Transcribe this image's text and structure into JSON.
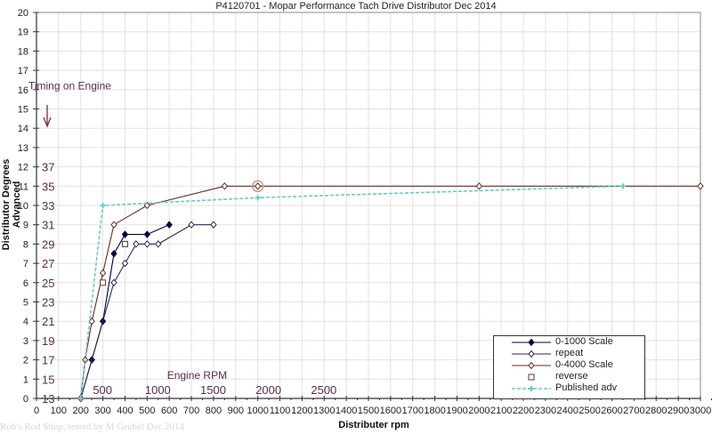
{
  "chart_data": {
    "type": "line",
    "title": "P4120701 - Mopar Performance Tach Drive Distributor Dec 2014",
    "xlabel": "Distributer rpm",
    "ylabel": "Distributor Degrees Advanced",
    "xlim": [
      0,
      3000
    ],
    "ylim": [
      0,
      20
    ],
    "x_ticks": [
      0,
      100,
      200,
      300,
      400,
      500,
      600,
      700,
      800,
      900,
      1000,
      1100,
      1200,
      1300,
      1400,
      1500,
      1600,
      1700,
      1800,
      1900,
      2000,
      2100,
      2200,
      2300,
      2400,
      2500,
      2600,
      2700,
      2800,
      2900,
      3000
    ],
    "y_ticks": [
      0,
      1,
      2,
      3,
      4,
      5,
      6,
      7,
      8,
      9,
      10,
      11,
      12,
      13,
      14,
      15,
      16,
      17,
      18,
      19,
      20
    ],
    "grid": true,
    "legend_position": "lower right",
    "secondary_y_labels": [
      {
        "y": 0,
        "label": "13"
      },
      {
        "y": 1,
        "label": "15"
      },
      {
        "y": 2,
        "label": "17"
      },
      {
        "y": 3,
        "label": "19"
      },
      {
        "y": 4,
        "label": "21"
      },
      {
        "y": 5,
        "label": "23"
      },
      {
        "y": 6,
        "label": "25"
      },
      {
        "y": 7,
        "label": "27"
      },
      {
        "y": 8,
        "label": "29"
      },
      {
        "y": 9,
        "label": "31"
      },
      {
        "y": 10,
        "label": "33"
      },
      {
        "y": 11,
        "label": "35"
      },
      {
        "y": 12,
        "label": "37"
      }
    ],
    "secondary_x_labels": [
      {
        "x": 250,
        "label": "500"
      },
      {
        "x": 500,
        "label": "1000"
      },
      {
        "x": 750,
        "label": "1500"
      },
      {
        "x": 1000,
        "label": "2000"
      },
      {
        "x": 1250,
        "label": "2500"
      }
    ],
    "annotations": [
      {
        "text": "Timing on Engine",
        "x": 20,
        "y": 16.2
      },
      {
        "text": "Engine RPM",
        "x": 590,
        "y": 1.2
      }
    ],
    "series": [
      {
        "name": "0-1000 Scale",
        "color": "#000040",
        "marker": "filled-diamond",
        "line": true,
        "points": [
          [
            200,
            0
          ],
          [
            250,
            2
          ],
          [
            300,
            4
          ],
          [
            350,
            7.5
          ],
          [
            400,
            8.5
          ],
          [
            500,
            8.5
          ],
          [
            600,
            9
          ]
        ]
      },
      {
        "name": "repeat",
        "color": "#2a2a5a",
        "marker": "hollow-diamond",
        "line": true,
        "points": [
          [
            200,
            0
          ],
          [
            350,
            6
          ],
          [
            400,
            7
          ],
          [
            450,
            8
          ],
          [
            500,
            8
          ],
          [
            550,
            8
          ],
          [
            700,
            9
          ],
          [
            800,
            9
          ]
        ]
      },
      {
        "name": "0-4000 Scale",
        "color": "#6b2a1e",
        "marker": "hollow-diamond",
        "line": true,
        "points": [
          [
            200,
            0
          ],
          [
            220,
            2
          ],
          [
            250,
            4
          ],
          [
            300,
            6.5
          ],
          [
            350,
            9
          ],
          [
            500,
            10
          ],
          [
            850,
            11
          ],
          [
            1000,
            11
          ],
          [
            2000,
            11
          ],
          [
            3000,
            11
          ]
        ]
      },
      {
        "name": "reverse",
        "color": "#5a3a3a",
        "marker": "hollow-square",
        "line": false,
        "points": [
          [
            300,
            6
          ],
          [
            400,
            8
          ]
        ]
      },
      {
        "name": "Published adv",
        "color": "#66cccc",
        "marker": "star",
        "line": true,
        "dashed": true,
        "points": [
          [
            200,
            0
          ],
          [
            300,
            10
          ],
          [
            1000,
            10.4
          ],
          [
            2650,
            11
          ]
        ]
      }
    ]
  },
  "legend": {
    "items": [
      {
        "label": "0-1000 Scale"
      },
      {
        "label": "repeat"
      },
      {
        "label": "0-4000 Scale"
      },
      {
        "label": "reverse"
      },
      {
        "label": "Published adv"
      }
    ]
  },
  "watermark": "Rob's Rod Shop, tested by M Grubel Dec 2014"
}
